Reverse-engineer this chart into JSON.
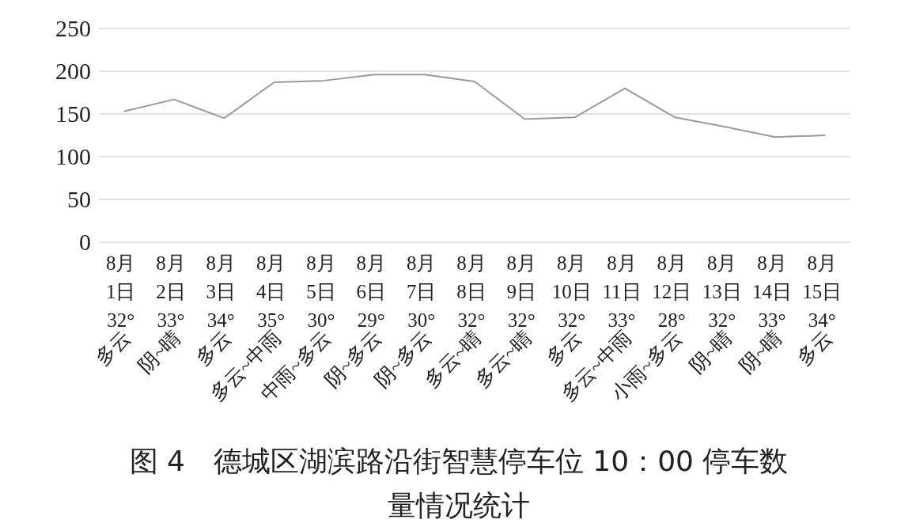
{
  "chart_data": {
    "type": "line",
    "title": "图 4　德城区湖滨路沿街智慧停车位 10：00 停车数量情况统计",
    "categories": [
      "8月 1日 32° 多云",
      "8月 2日 33° 阴~晴",
      "8月 3日 34° 多云",
      "8月 4日 35° 多云~中雨",
      "8月 5日 30° 中雨~多云",
      "8月 6日 29° 阴~多云",
      "8月 7日 30° 阴~多云",
      "8月 8日 32° 多云~晴",
      "8月 9日 32° 多云~晴",
      "8月 10日 32° 多云",
      "8月 11日 33° 多云~中雨",
      "8月 12日 28° 小雨~多云",
      "8月 13日 32° 阴~晴",
      "8月 14日 33° 阴~晴",
      "8月 15日 34° 多云"
    ],
    "series": [
      {
        "color": "#9a9a9a",
        "values": [
          153,
          167,
          145,
          187,
          189,
          196,
          196,
          188,
          144,
          146,
          180,
          146,
          135,
          123,
          125
        ]
      }
    ],
    "ylim": [
      0,
      250
    ],
    "yticks": [
      0,
      50,
      100,
      150,
      200,
      250
    ],
    "grid": "y",
    "marker": "none",
    "line_style": "solid"
  }
}
